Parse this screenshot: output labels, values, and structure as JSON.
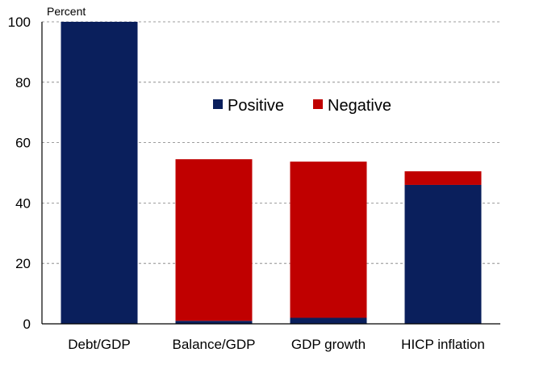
{
  "chart_data": {
    "type": "bar",
    "stacked": true,
    "unit_label": "Percent",
    "categories": [
      "Debt/GDP",
      "Balance/GDP",
      "GDP growth",
      "HICP inflation"
    ],
    "series": [
      {
        "name": "Positive",
        "color": "#0a1f5c",
        "values": [
          100,
          1,
          2,
          46
        ]
      },
      {
        "name": "Negative",
        "color": "#c00000",
        "values": [
          0,
          53.5,
          51.7,
          4.5
        ]
      }
    ],
    "ylim": [
      0,
      100
    ],
    "yticks": [
      0,
      20,
      40,
      60,
      80,
      100
    ],
    "grid": true,
    "grid_style": "dashed",
    "legend_position": "top-center"
  }
}
